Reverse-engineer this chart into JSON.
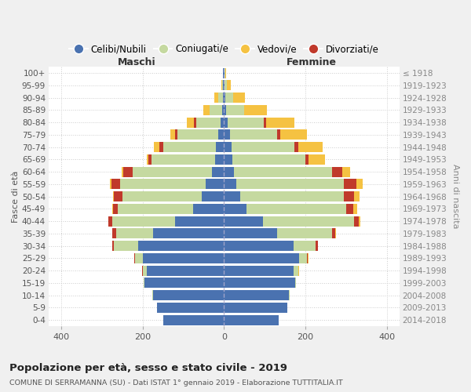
{
  "age_groups": [
    "0-4",
    "5-9",
    "10-14",
    "15-19",
    "20-24",
    "25-29",
    "30-34",
    "35-39",
    "40-44",
    "45-49",
    "50-54",
    "55-59",
    "60-64",
    "65-69",
    "70-74",
    "75-79",
    "80-84",
    "85-89",
    "90-94",
    "95-99",
    "100+"
  ],
  "birth_years": [
    "2014-2018",
    "2009-2013",
    "2004-2008",
    "1999-2003",
    "1994-1998",
    "1989-1993",
    "1984-1988",
    "1979-1983",
    "1974-1978",
    "1969-1973",
    "1964-1968",
    "1959-1963",
    "1954-1958",
    "1949-1953",
    "1944-1948",
    "1939-1943",
    "1934-1938",
    "1929-1933",
    "1924-1928",
    "1919-1923",
    "≤ 1918"
  ],
  "males": {
    "celibe": [
      150,
      165,
      175,
      195,
      190,
      200,
      210,
      175,
      120,
      75,
      55,
      45,
      30,
      22,
      20,
      15,
      8,
      5,
      3,
      2,
      2
    ],
    "coniugato": [
      0,
      0,
      1,
      3,
      10,
      18,
      60,
      90,
      155,
      185,
      195,
      210,
      195,
      155,
      130,
      100,
      60,
      30,
      12,
      3,
      1
    ],
    "vedovo": [
      0,
      0,
      0,
      0,
      0,
      0,
      0,
      0,
      1,
      2,
      2,
      3,
      4,
      5,
      15,
      12,
      18,
      15,
      8,
      2,
      0
    ],
    "divorziato": [
      0,
      0,
      0,
      0,
      1,
      2,
      5,
      10,
      8,
      12,
      20,
      22,
      22,
      8,
      8,
      5,
      5,
      0,
      0,
      0,
      0
    ]
  },
  "females": {
    "nubile": [
      135,
      155,
      160,
      175,
      170,
      185,
      170,
      130,
      95,
      55,
      40,
      30,
      25,
      20,
      18,
      15,
      8,
      5,
      4,
      2,
      2
    ],
    "coniugata": [
      0,
      0,
      1,
      2,
      12,
      18,
      55,
      135,
      225,
      245,
      255,
      265,
      240,
      180,
      155,
      115,
      90,
      45,
      18,
      5,
      1
    ],
    "vedova": [
      0,
      0,
      0,
      0,
      1,
      2,
      1,
      2,
      5,
      8,
      12,
      15,
      20,
      40,
      60,
      65,
      70,
      55,
      30,
      10,
      2
    ],
    "divorziata": [
      0,
      0,
      0,
      0,
      1,
      2,
      5,
      8,
      10,
      18,
      25,
      30,
      25,
      8,
      10,
      8,
      5,
      0,
      0,
      0,
      0
    ]
  },
  "colors": {
    "celibe": "#4a72b0",
    "coniugato": "#c5d9a0",
    "vedovo": "#f5c242",
    "divorziato": "#c0392b"
  },
  "legend_labels": [
    "Celibi/Nubili",
    "Coniugati/e",
    "Vedovi/e",
    "Divorziati/e"
  ],
  "xlim": 430,
  "xticks": [
    400,
    200,
    0,
    200,
    400
  ],
  "title": "Popolazione per età, sesso e stato civile - 2019",
  "subtitle": "COMUNE DI SERRAMANNA (SU) - Dati ISTAT 1° gennaio 2019 - Elaborazione TUTTITALIA.IT",
  "ylabel_left": "Fasce di età",
  "ylabel_right": "Anni di nascita",
  "xlabel_left": "Maschi",
  "xlabel_right": "Femmine",
  "bg_color": "#f0f0f0",
  "plot_bg": "#ffffff"
}
